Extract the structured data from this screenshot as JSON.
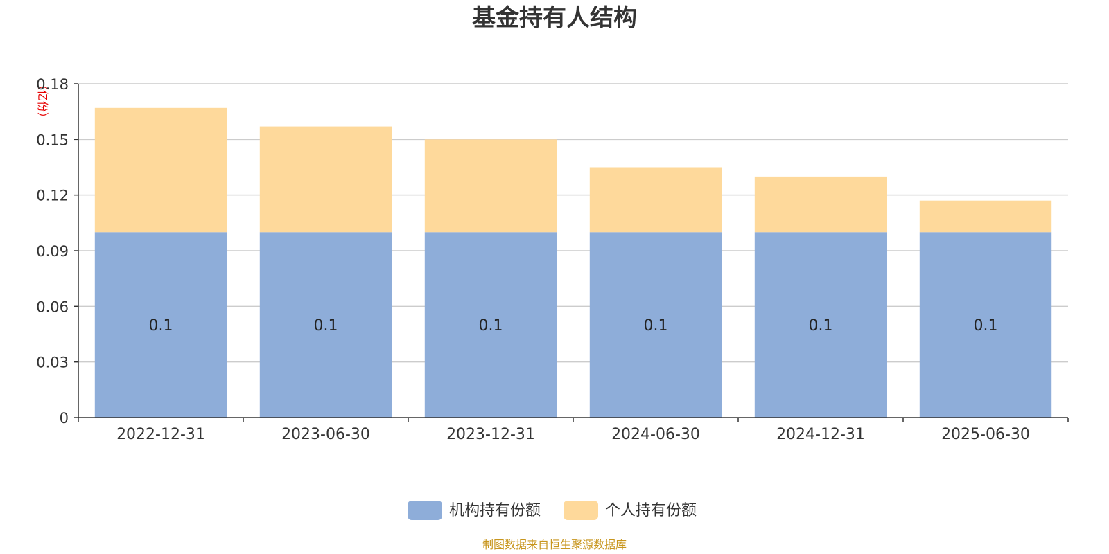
{
  "chart_data": {
    "type": "bar",
    "stacked": true,
    "title": "基金持有人结构",
    "unit_label": "（亿份）",
    "categories": [
      "2022-12-31",
      "2023-06-30",
      "2023-12-31",
      "2024-06-30",
      "2024-12-31",
      "2025-06-30"
    ],
    "ylim": [
      0,
      0.18
    ],
    "yticks": [
      "0",
      "0.03",
      "0.06",
      "0.09",
      "0.12",
      "0.15",
      "0.18"
    ],
    "grid": true,
    "legend_position": "bottom-center",
    "series": [
      {
        "name": "机构持有份额",
        "color": "#8eadd9",
        "values": [
          0.1,
          0.1,
          0.1,
          0.1,
          0.1,
          0.1
        ],
        "labels": [
          "0.1",
          "0.1",
          "0.1",
          "0.1",
          "0.1",
          "0.1"
        ]
      },
      {
        "name": "个人持有份额",
        "color": "#fed99b",
        "values": [
          0.067,
          0.057,
          0.05,
          0.035,
          0.03,
          0.017
        ]
      }
    ],
    "source": "制图数据来自恒生聚源数据库"
  }
}
